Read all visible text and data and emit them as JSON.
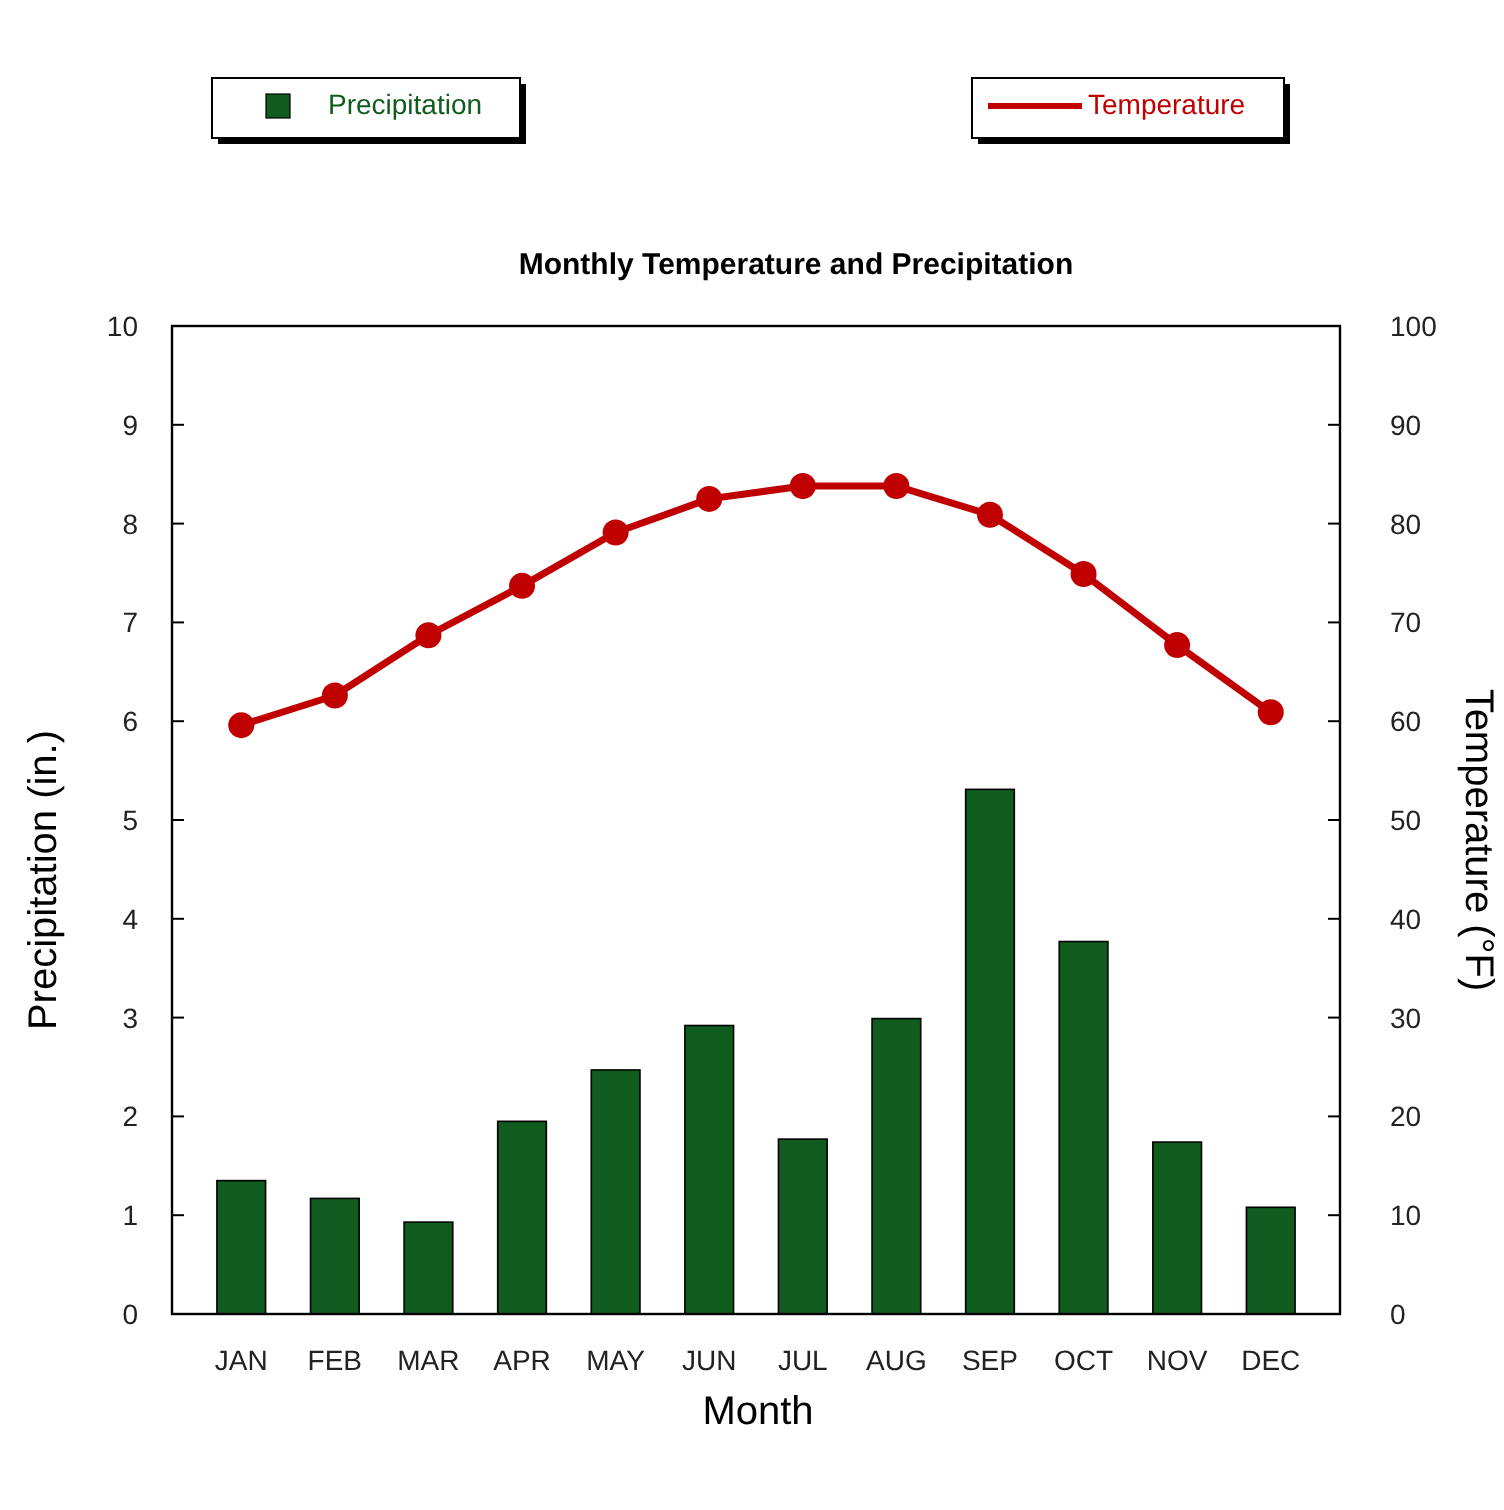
{
  "chart_data": {
    "type": "bar",
    "title": "Monthly Temperature and Precipitation",
    "xlabel": "Month",
    "ylabel": "Precipitation (in.)",
    "y2label": "Temperature (°F)",
    "categories": [
      "JAN",
      "FEB",
      "MAR",
      "APR",
      "MAY",
      "JUN",
      "JUL",
      "AUG",
      "SEP",
      "OCT",
      "NOV",
      "DEC"
    ],
    "series": [
      {
        "name": "Precipitation",
        "color": "#0f5c1e",
        "values": [
          1.35,
          1.17,
          0.93,
          1.95,
          2.47,
          2.92,
          1.77,
          2.99,
          5.31,
          3.77,
          1.74,
          1.08
        ]
      },
      {
        "name": "Temperature",
        "type": "line",
        "axis": "y2",
        "color": "#c00000",
        "marker": "circle",
        "values": [
          59.6,
          62.6,
          68.7,
          73.7,
          79.1,
          82.5,
          83.8,
          83.8,
          80.9,
          74.9,
          67.7,
          60.9
        ]
      }
    ],
    "ylim": [
      0,
      10
    ],
    "yticks": [
      0,
      1,
      2,
      3,
      4,
      5,
      6,
      7,
      8,
      9,
      10
    ],
    "y2lim": [
      0,
      100
    ],
    "y2ticks": [
      0,
      10,
      20,
      30,
      40,
      50,
      60,
      70,
      80,
      90,
      100
    ],
    "grid": false,
    "legend": "top"
  }
}
